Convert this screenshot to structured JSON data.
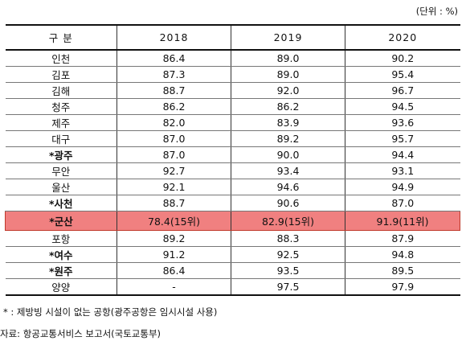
{
  "unit": "(단위 : %)",
  "header": [
    "구 분",
    "2018",
    "2019",
    "2020"
  ],
  "rows": [
    [
      "인천",
      "86.4",
      "89.0",
      "90.2"
    ],
    [
      "김포",
      "87.3",
      "89.0",
      "95.4"
    ],
    [
      "김해",
      "88.7",
      "92.0",
      "96.7"
    ],
    [
      "청주",
      "86.2",
      "86.2",
      "94.5"
    ],
    [
      "제주",
      "82.0",
      "83.9",
      "93.6"
    ],
    [
      "대구",
      "87.0",
      "89.2",
      "95.7"
    ],
    [
      "*광주",
      "87.0",
      "90.0",
      "94.4"
    ],
    [
      "무안",
      "92.7",
      "93.4",
      "93.1"
    ],
    [
      "울산",
      "92.1",
      "94.6",
      "94.9"
    ],
    [
      "*사천",
      "88.7",
      "90.6",
      "87.0"
    ],
    [
      "*군산",
      "78.4(15위)",
      "82.9(15위)",
      "91.9(11위)"
    ],
    [
      "포항",
      "89.2",
      "88.3",
      "87.9"
    ],
    [
      "*여수",
      "91.2",
      "92.5",
      "94.8"
    ],
    [
      "*원주",
      "86.4",
      "93.5",
      "89.5"
    ],
    [
      "양양",
      "-",
      "97.5",
      "97.9"
    ]
  ],
  "highlight_color": "#f08080",
  "footnote": "* : 제방빙 시설이 없는 공항(광주공항은 임시시설 사용)",
  "source": "자료: 항공교통서비스 보고서(국토교통부)"
}
